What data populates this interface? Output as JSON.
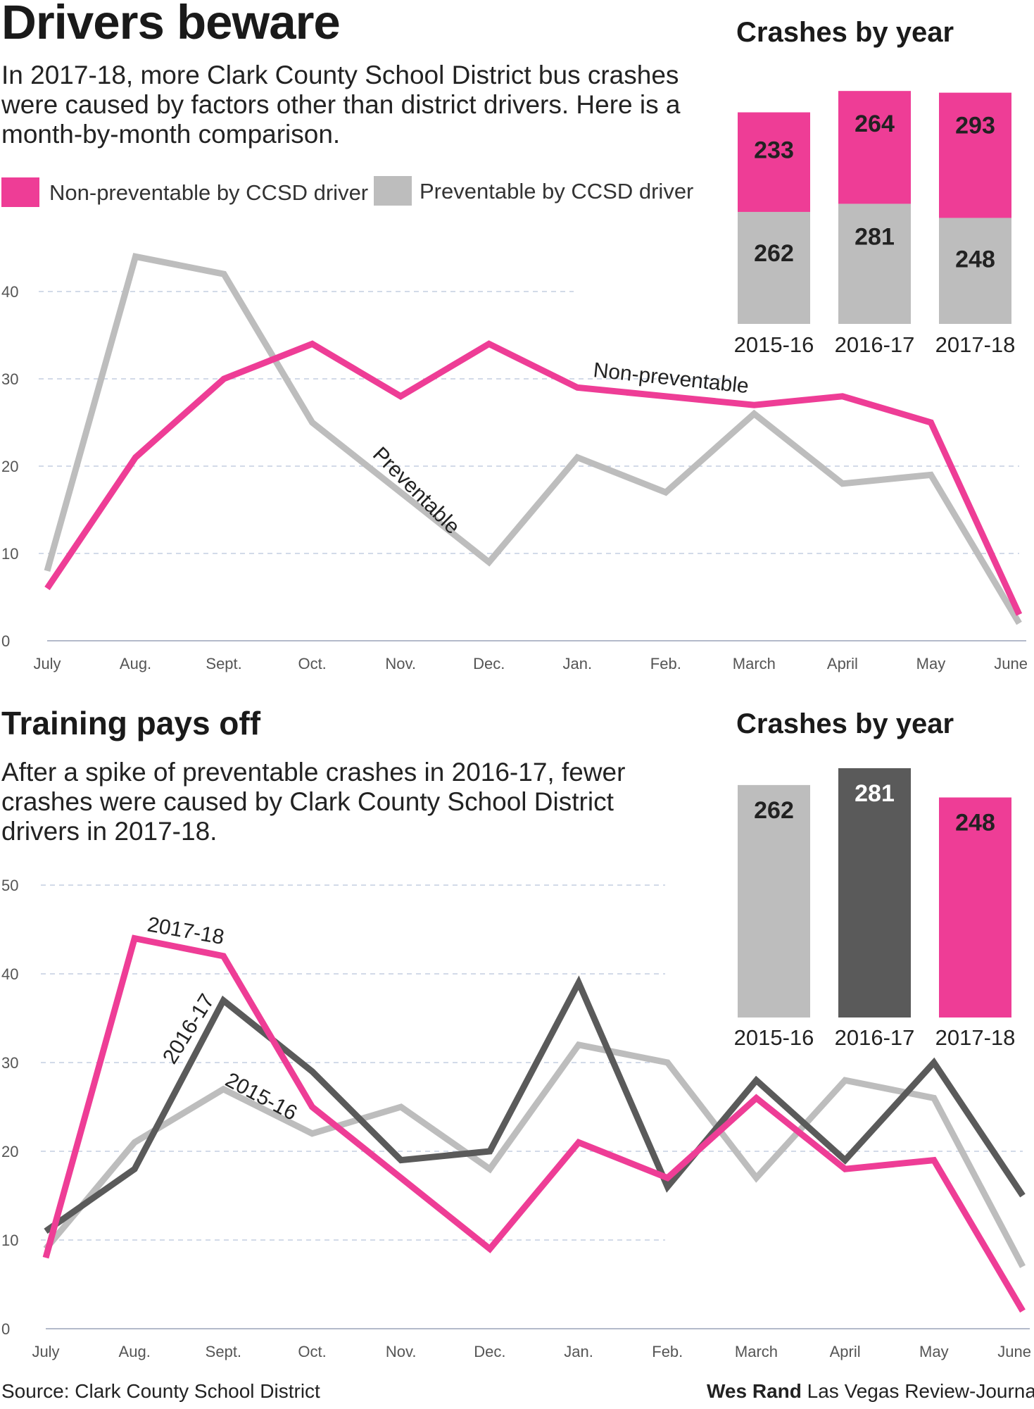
{
  "colors": {
    "pink": "#ee3d96",
    "light_gray": "#bdbdbd",
    "dark_gray": "#5a5a5a",
    "grid": "#c4cde0"
  },
  "section1": {
    "headline": "Drivers beware",
    "intro": "In 2017-18, more Clark County School District bus crashes were caused by factors other than district drivers. Here is a month-by-month comparison.",
    "legend": [
      {
        "label": "Non-preventable by CCSD driver",
        "color": "#ee3d96"
      },
      {
        "label": "Preventable by CCSD driver",
        "color": "#bdbdbd"
      }
    ],
    "box_title": "Crashes by year"
  },
  "section2": {
    "headline": "Training pays off",
    "intro": "After a spike of preventable crashes in 2016-17, fewer crashes were caused by Clark County School District drivers in 2017-18.",
    "box_title": "Crashes by year"
  },
  "chart_data": [
    {
      "type": "line",
      "id": "monthly-preventable-vs-nonpreventable",
      "categories": [
        "July",
        "Aug.",
        "Sept.",
        "Oct.",
        "Nov.",
        "Dec.",
        "Jan.",
        "Feb.",
        "March",
        "April",
        "May",
        "June"
      ],
      "ylim": [
        0,
        40
      ],
      "yticks": [
        0,
        10,
        20,
        30,
        40
      ],
      "series": [
        {
          "name": "Preventable",
          "label": "Preventable",
          "color": "#bdbdbd",
          "values": [
            8,
            44,
            42,
            25,
            17,
            9,
            21,
            17,
            26,
            18,
            19,
            2
          ]
        },
        {
          "name": "Non-preventable",
          "label": "Non-preventable",
          "color": "#ee3d96",
          "values": [
            6,
            21,
            30,
            34,
            28,
            34,
            29,
            28,
            27,
            28,
            25,
            3
          ]
        }
      ]
    },
    {
      "type": "bar",
      "stacked": true,
      "id": "crashes-by-year-stacked",
      "title": "Crashes by year",
      "categories": [
        "2015-16",
        "2016-17",
        "2017-18"
      ],
      "series": [
        {
          "name": "Preventable",
          "color": "#bdbdbd",
          "values": [
            262,
            281,
            248
          ]
        },
        {
          "name": "Non-preventable",
          "color": "#ee3d96",
          "values": [
            233,
            264,
            293
          ]
        }
      ]
    },
    {
      "type": "line",
      "id": "preventable-by-year",
      "categories": [
        "July",
        "Aug.",
        "Sept.",
        "Oct.",
        "Nov.",
        "Dec.",
        "Jan.",
        "Feb.",
        "March",
        "April",
        "May",
        "June"
      ],
      "ylim": [
        0,
        50
      ],
      "yticks": [
        0,
        10,
        20,
        30,
        40,
        50
      ],
      "series": [
        {
          "name": "2015-16",
          "label": "2015-16",
          "color": "#bdbdbd",
          "values": [
            9,
            21,
            27,
            22,
            25,
            18,
            32,
            30,
            17,
            28,
            26,
            7
          ]
        },
        {
          "name": "2016-17",
          "label": "2016-17",
          "color": "#5a5a5a",
          "values": [
            11,
            18,
            37,
            29,
            19,
            20,
            39,
            16,
            28,
            19,
            30,
            15
          ]
        },
        {
          "name": "2017-18",
          "label": "2017-18",
          "color": "#ee3d96",
          "values": [
            8,
            44,
            42,
            25,
            17,
            9,
            21,
            17,
            26,
            18,
            19,
            2
          ]
        }
      ]
    },
    {
      "type": "bar",
      "id": "preventable-crashes-by-year",
      "title": "Crashes by year",
      "categories": [
        "2015-16",
        "2016-17",
        "2017-18"
      ],
      "values": [
        262,
        281,
        248
      ],
      "colors": [
        "#bdbdbd",
        "#5a5a5a",
        "#ee3d96"
      ]
    }
  ],
  "footer": {
    "source": "Source: Clark County School District",
    "credit_name": "Wes Rand",
    "credit_outlet": "Las Vegas Review-Journal"
  }
}
